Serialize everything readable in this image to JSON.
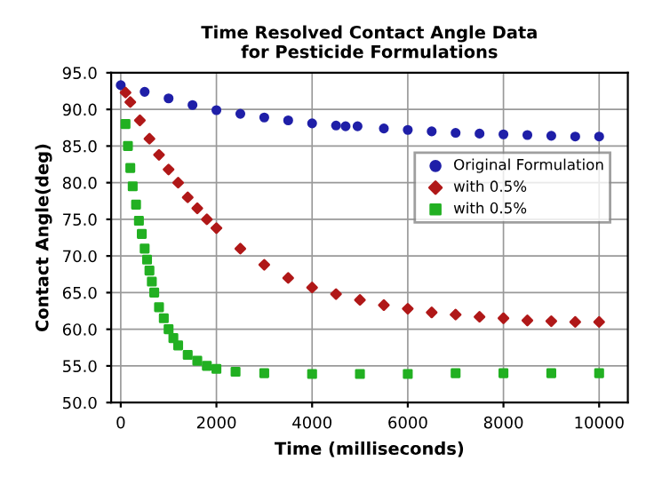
{
  "chart_data": {
    "type": "scatter",
    "title": "Time Resolved Contact Angle Data\nfor Pesticide Formulations",
    "xlabel": "Time (milliseconds)",
    "ylabel": "Contact Angle(deg)",
    "xlim": [
      -200,
      10600
    ],
    "xticks": [
      0,
      2000,
      4000,
      6000,
      8000,
      10000
    ],
    "ylim": [
      50,
      95
    ],
    "yticks": [
      {
        "value": 50,
        "label": "50.0"
      },
      {
        "value": 55,
        "label": "55.0"
      },
      {
        "value": 60,
        "label": "60.0"
      },
      {
        "value": 65,
        "label": "65.0"
      },
      {
        "value": 70,
        "label": "70.0"
      },
      {
        "value": 75,
        "label": "75.0"
      },
      {
        "value": 80,
        "label": "80.0"
      },
      {
        "value": 85,
        "label": "85.0"
      },
      {
        "value": 90,
        "label": "90.0"
      },
      {
        "value": 95,
        "label": "95.0"
      }
    ],
    "grid": true,
    "legend": "top right",
    "series": [
      {
        "name": "Original Formulation",
        "color": "#1f1fa8",
        "marker": "circle",
        "x": [
          0,
          500,
          1000,
          1500,
          2000,
          2500,
          3000,
          3500,
          4000,
          4500,
          4700,
          4800,
          4950,
          5500,
          6000,
          6500,
          7000,
          7500,
          8000,
          8500,
          9000,
          9500,
          10000
        ],
        "values": [
          93.3,
          92.4,
          91.5,
          90.6,
          89.9,
          89.4,
          88.9,
          88.5,
          88.1,
          87.8,
          87.7,
          null,
          87.7,
          87.4,
          87.2,
          87.0,
          86.8,
          86.7,
          86.6,
          86.5,
          86.4,
          86.3,
          86.3
        ]
      },
      {
        "name": "with 0.5%",
        "color": "#b01818",
        "marker": "diamond",
        "x": [
          100,
          200,
          400,
          600,
          800,
          1000,
          1200,
          1400,
          1600,
          1800,
          2000,
          2500,
          3000,
          3500,
          4000,
          4500,
          5000,
          5500,
          6000,
          6500,
          7000,
          7500,
          8000,
          8500,
          9000,
          9500,
          10000
        ],
        "values": [
          92.3,
          91.0,
          88.5,
          86.0,
          83.8,
          81.8,
          80.0,
          78.0,
          76.5,
          75.0,
          73.8,
          71.0,
          68.8,
          67.0,
          65.7,
          64.8,
          64.0,
          63.3,
          62.8,
          62.3,
          62.0,
          61.7,
          61.5,
          61.2,
          61.1,
          61.0,
          61.0
        ]
      },
      {
        "name": "with 0.5%",
        "color": "#22b022",
        "marker": "square",
        "x": [
          100,
          150,
          200,
          250,
          320,
          380,
          440,
          500,
          550,
          600,
          650,
          700,
          800,
          900,
          1000,
          1100,
          1200,
          1400,
          1600,
          1800,
          2000,
          2400,
          3000,
          4000,
          5000,
          6000,
          7000,
          8000,
          9000,
          10000
        ],
        "values": [
          88.0,
          85.0,
          82.0,
          79.5,
          77.0,
          74.8,
          73.0,
          71.0,
          69.5,
          68.0,
          66.5,
          65.0,
          63.0,
          61.5,
          60.0,
          58.8,
          57.8,
          56.5,
          55.7,
          55.0,
          54.6,
          54.2,
          54.0,
          53.9,
          53.9,
          53.9,
          54.0,
          54.0,
          54.0,
          54.0
        ]
      }
    ]
  }
}
